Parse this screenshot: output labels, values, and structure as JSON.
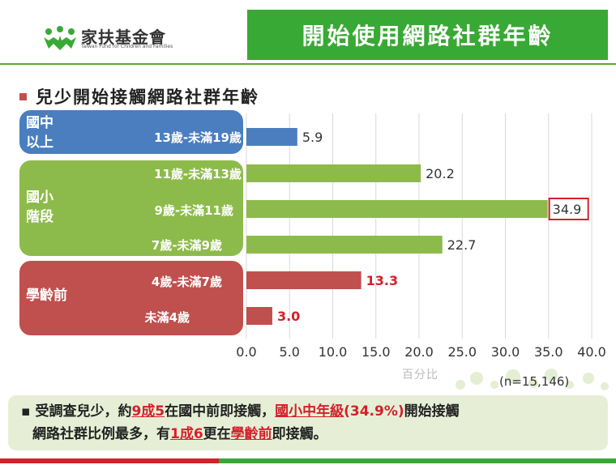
{
  "header": {
    "logo_text": "家扶基金會",
    "logo_sub": "Taiwan Fund for Children and Families",
    "title": "開始使用網路社群年齡",
    "logo_icon": "family-people-icon"
  },
  "subtitle": "兒少開始接觸網路社群年齡",
  "groups": [
    {
      "name": "國中以上",
      "label_lines": [
        "國中",
        "以上"
      ],
      "color": "#4a7ebf"
    },
    {
      "name": "國小階段",
      "label_lines": [
        "國小",
        "階段"
      ],
      "color": "#8dbb4b"
    },
    {
      "name": "學齡前",
      "label_lines": [
        "學齡前"
      ],
      "color": "#c0504d"
    }
  ],
  "chart_data": {
    "type": "bar",
    "orientation": "horizontal",
    "categories": [
      "13歲-未滿19歲",
      "11歲-未滿13歲",
      "9歲-未滿11歲",
      "7歲-未滿9歲",
      "4歲-未滿7歲",
      "未滿4歲"
    ],
    "values": [
      5.9,
      20.2,
      34.9,
      22.7,
      13.3,
      3.0
    ],
    "value_labels": [
      "5.9",
      "20.2",
      "34.9",
      "22.7",
      "13.3",
      "3.0"
    ],
    "bar_colors": [
      "#4a7ebf",
      "#8dbb4b",
      "#8dbb4b",
      "#8dbb4b",
      "#c0504d",
      "#c0504d"
    ],
    "label_colors": [
      "#333333",
      "#333333",
      "#333333",
      "#333333",
      "#d3202a",
      "#d3202a"
    ],
    "highlight_index": 2,
    "xlim": [
      0,
      40
    ],
    "xticks": [
      "0.0",
      "5.0",
      "10.0",
      "15.0",
      "20.0",
      "25.0",
      "30.0",
      "35.0",
      "40.0"
    ],
    "xlabel": "百分比",
    "grid": "vertical",
    "title": ""
  },
  "sample_note": "(n=15,146)",
  "summary": {
    "bullet": "▪",
    "p1": "受調查兒少，約",
    "h1": "9成5",
    "p2": "在國中前即接觸，",
    "h2": "國小中年級",
    "h3": "(34.9%)",
    "p3": "開始接觸",
    "p4": "網路社群比例最多，有",
    "h4": "1成6",
    "p5": "更在",
    "h5": "學齡前",
    "p6": "即接觸。"
  }
}
